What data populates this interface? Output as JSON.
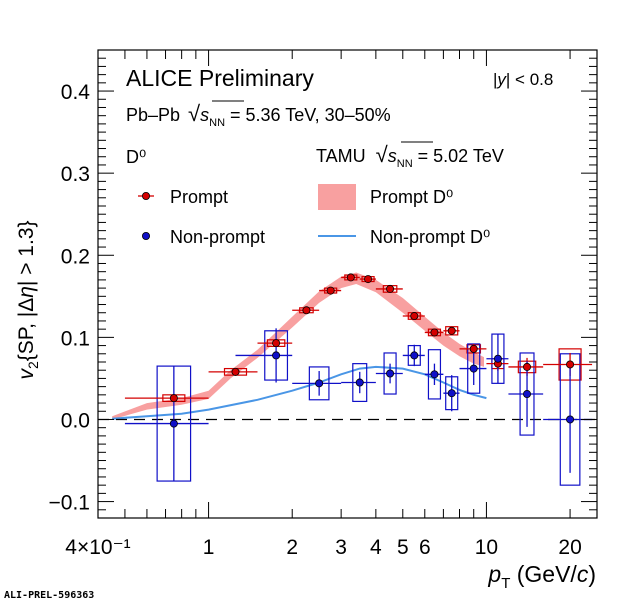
{
  "chart_data": {
    "type": "scatter",
    "x_scale": "log",
    "xlim": [
      0.4,
      25
    ],
    "ylim": [
      -0.12,
      0.45
    ],
    "xlabel": {
      "main": "p",
      "sub": "T",
      "unit_pre": " (GeV/",
      "unit_c": "c",
      "unit_post": ")"
    },
    "ylabel": "v2{SP, |Δη| > 1.3}",
    "x_ticks": [
      {
        "v": 0.4,
        "label": "4×10⁻¹"
      },
      {
        "v": 1,
        "label": "1"
      },
      {
        "v": 2,
        "label": "2"
      },
      {
        "v": 3,
        "label": "3"
      },
      {
        "v": 4,
        "label": "4"
      },
      {
        "v": 5,
        "label": "5"
      },
      {
        "v": 6,
        "label": "6"
      },
      {
        "v": 10,
        "label": "10"
      },
      {
        "v": 20,
        "label": "20"
      }
    ],
    "y_ticks": [
      {
        "v": -0.1,
        "label": "−0.1"
      },
      {
        "v": 0.0,
        "label": "0.0"
      },
      {
        "v": 0.1,
        "label": "0.1"
      },
      {
        "v": 0.2,
        "label": "0.2"
      },
      {
        "v": 0.3,
        "label": "0.3"
      },
      {
        "v": 0.4,
        "label": "0.4"
      }
    ],
    "texts": {
      "title": "ALICE Preliminary",
      "rapidity": "|y| < 0.8",
      "system_pre": "Pb–Pb",
      "system_val": " = 5.36 TeV, 30–50%",
      "particle": "D⁰",
      "model_pre": "TAMU",
      "model_val": " = 5.02 TeV",
      "label_id": "ALI-PREL-596363"
    },
    "legend": [
      {
        "name": "Prompt",
        "kind": "marker",
        "color": "#d40000"
      },
      {
        "name": "Non-prompt",
        "kind": "marker",
        "color": "#1010c8"
      },
      {
        "name": "Prompt D⁰",
        "kind": "band",
        "color": "#f8a0a0"
      },
      {
        "name": "Non-prompt D⁰",
        "kind": "line",
        "color": "#4a96e6"
      }
    ],
    "series": [
      {
        "name": "Prompt",
        "color": "#d40000",
        "points": [
          {
            "x": 0.75,
            "xlo": 0.5,
            "xhi": 1.0,
            "y": 0.026,
            "e": 0.004,
            "s": 0.004
          },
          {
            "x": 1.25,
            "xlo": 1.0,
            "xhi": 1.5,
            "y": 0.058,
            "e": 0.004,
            "s": 0.004
          },
          {
            "x": 1.75,
            "xlo": 1.5,
            "xhi": 2.0,
            "y": 0.093,
            "e": 0.003,
            "s": 0.004
          },
          {
            "x": 2.25,
            "xlo": 2.0,
            "xhi": 2.5,
            "y": 0.133,
            "e": 0.003,
            "s": 0.003
          },
          {
            "x": 2.75,
            "xlo": 2.5,
            "xhi": 3.0,
            "y": 0.157,
            "e": 0.003,
            "s": 0.003
          },
          {
            "x": 3.25,
            "xlo": 3.0,
            "xhi": 3.5,
            "y": 0.173,
            "e": 0.003,
            "s": 0.003
          },
          {
            "x": 3.75,
            "xlo": 3.5,
            "xhi": 4.0,
            "y": 0.171,
            "e": 0.003,
            "s": 0.003
          },
          {
            "x": 4.5,
            "xlo": 4.0,
            "xhi": 5.0,
            "y": 0.159,
            "e": 0.003,
            "s": 0.004
          },
          {
            "x": 5.5,
            "xlo": 5.0,
            "xhi": 6.0,
            "y": 0.126,
            "e": 0.003,
            "s": 0.004
          },
          {
            "x": 6.5,
            "xlo": 6.0,
            "xhi": 7.0,
            "y": 0.106,
            "e": 0.004,
            "s": 0.004
          },
          {
            "x": 7.5,
            "xlo": 7.0,
            "xhi": 8.0,
            "y": 0.108,
            "e": 0.005,
            "s": 0.005
          },
          {
            "x": 9.0,
            "xlo": 8.0,
            "xhi": 10.0,
            "y": 0.086,
            "e": 0.006,
            "s": 0.005
          },
          {
            "x": 11.0,
            "xlo": 10.0,
            "xhi": 12.0,
            "y": 0.068,
            "e": 0.009,
            "s": 0.006
          },
          {
            "x": 14.0,
            "xlo": 12.0,
            "xhi": 16.0,
            "y": 0.064,
            "e": 0.011,
            "s": 0.007
          },
          {
            "x": 20.0,
            "xlo": 16.0,
            "xhi": 24.0,
            "y": 0.067,
            "e": 0.014,
            "s": 0.019
          }
        ]
      },
      {
        "name": "Non-prompt",
        "color": "#1010c8",
        "points": [
          {
            "x": 0.75,
            "xlo": 0.5,
            "xhi": 1.0,
            "y": -0.005,
            "e": 0.07,
            "s": 0.07
          },
          {
            "x": 1.75,
            "xlo": 1.25,
            "xhi": 2.0,
            "y": 0.078,
            "e": 0.033,
            "s": 0.03
          },
          {
            "x": 2.5,
            "xlo": 2.0,
            "xhi": 3.0,
            "y": 0.044,
            "e": 0.015,
            "s": 0.02
          },
          {
            "x": 3.5,
            "xlo": 3.0,
            "xhi": 4.0,
            "y": 0.045,
            "e": 0.013,
            "s": 0.023
          },
          {
            "x": 4.5,
            "xlo": 4.0,
            "xhi": 5.0,
            "y": 0.056,
            "e": 0.012,
            "s": 0.025
          },
          {
            "x": 5.5,
            "xlo": 5.0,
            "xhi": 6.0,
            "y": 0.078,
            "e": 0.013,
            "s": 0.012
          },
          {
            "x": 6.5,
            "xlo": 6.0,
            "xhi": 7.0,
            "y": 0.055,
            "e": 0.013,
            "s": 0.03
          },
          {
            "x": 7.5,
            "xlo": 7.0,
            "xhi": 8.0,
            "y": 0.032,
            "e": 0.022,
            "s": 0.02
          },
          {
            "x": 9.0,
            "xlo": 8.0,
            "xhi": 10.0,
            "y": 0.062,
            "e": 0.02,
            "s": 0.03
          },
          {
            "x": 11.0,
            "xlo": 10.0,
            "xhi": 12.0,
            "y": 0.074,
            "e": 0.03,
            "s": 0.03
          },
          {
            "x": 14.0,
            "xlo": 12.0,
            "xhi": 16.0,
            "y": 0.031,
            "e": 0.04,
            "s": 0.05
          },
          {
            "x": 20.0,
            "xlo": 16.0,
            "xhi": 24.0,
            "y": 0.0,
            "e": 0.065,
            "s": 0.08
          }
        ]
      }
    ],
    "model_prompt_band": [
      {
        "x": 0.45,
        "lo": 0.0,
        "hi": 0.004
      },
      {
        "x": 0.6,
        "lo": 0.012,
        "hi": 0.02
      },
      {
        "x": 0.8,
        "lo": 0.018,
        "hi": 0.026
      },
      {
        "x": 1.0,
        "lo": 0.025,
        "hi": 0.035
      },
      {
        "x": 1.2,
        "lo": 0.05,
        "hi": 0.06
      },
      {
        "x": 1.5,
        "lo": 0.075,
        "hi": 0.085
      },
      {
        "x": 2.0,
        "lo": 0.112,
        "hi": 0.125
      },
      {
        "x": 2.5,
        "lo": 0.142,
        "hi": 0.156
      },
      {
        "x": 3.0,
        "lo": 0.16,
        "hi": 0.174
      },
      {
        "x": 3.4,
        "lo": 0.165,
        "hi": 0.179
      },
      {
        "x": 4.0,
        "lo": 0.155,
        "hi": 0.17
      },
      {
        "x": 5.0,
        "lo": 0.13,
        "hi": 0.148
      },
      {
        "x": 6.0,
        "lo": 0.108,
        "hi": 0.125
      },
      {
        "x": 7.0,
        "lo": 0.09,
        "hi": 0.106
      },
      {
        "x": 8.0,
        "lo": 0.077,
        "hi": 0.092
      },
      {
        "x": 9.0,
        "lo": 0.068,
        "hi": 0.082
      },
      {
        "x": 9.8,
        "lo": 0.064,
        "hi": 0.076
      }
    ],
    "model_nonprompt_line": [
      {
        "x": 0.45,
        "y": 0.001
      },
      {
        "x": 0.6,
        "y": 0.004
      },
      {
        "x": 0.8,
        "y": 0.007
      },
      {
        "x": 1.0,
        "y": 0.012
      },
      {
        "x": 1.5,
        "y": 0.024
      },
      {
        "x": 2.0,
        "y": 0.035
      },
      {
        "x": 2.5,
        "y": 0.045
      },
      {
        "x": 3.0,
        "y": 0.055
      },
      {
        "x": 3.5,
        "y": 0.062
      },
      {
        "x": 4.0,
        "y": 0.064
      },
      {
        "x": 4.5,
        "y": 0.063
      },
      {
        "x": 5.0,
        "y": 0.062
      },
      {
        "x": 6.0,
        "y": 0.055
      },
      {
        "x": 7.0,
        "y": 0.045
      },
      {
        "x": 8.0,
        "y": 0.036
      },
      {
        "x": 9.0,
        "y": 0.03
      },
      {
        "x": 10.0,
        "y": 0.026
      }
    ]
  }
}
